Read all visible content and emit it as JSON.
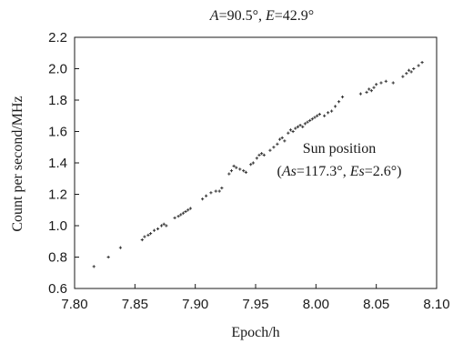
{
  "chart_data": {
    "type": "scatter",
    "title": "A=90.5°, E=42.9°",
    "title_parts": {
      "a_var": "A",
      "a_val": "=90.5°, ",
      "e_var": "E",
      "e_val": "=42.9°"
    },
    "xlabel": "Epoch/h",
    "ylabel": "Count per second/MHz",
    "xlim": [
      7.8,
      8.1
    ],
    "ylim": [
      0.6,
      2.2
    ],
    "xticks": [
      "7.80",
      "7.85",
      "7.90",
      "7.95",
      "8.00",
      "8.05",
      "8.10"
    ],
    "yticks": [
      "0.6",
      "0.8",
      "1.0",
      "1.2",
      "1.4",
      "1.6",
      "1.8",
      "2.0",
      "2.2"
    ],
    "grid": false,
    "legend": "none",
    "marker_color": "#333333",
    "annotation": {
      "line1": "Sun position",
      "open": "(",
      "as_var": "As",
      "as_val": "=117.3°, ",
      "es_var": "Es",
      "es_val": "=2.6°)"
    },
    "points": [
      [
        7.816,
        0.74
      ],
      [
        7.828,
        0.8
      ],
      [
        7.838,
        0.86
      ],
      [
        7.856,
        0.91
      ],
      [
        7.858,
        0.93
      ],
      [
        7.861,
        0.94
      ],
      [
        7.863,
        0.95
      ],
      [
        7.866,
        0.97
      ],
      [
        7.869,
        0.98
      ],
      [
        7.872,
        1.0
      ],
      [
        7.874,
        1.01
      ],
      [
        7.876,
        1.0
      ],
      [
        7.883,
        1.05
      ],
      [
        7.886,
        1.06
      ],
      [
        7.888,
        1.07
      ],
      [
        7.89,
        1.08
      ],
      [
        7.892,
        1.09
      ],
      [
        7.894,
        1.1
      ],
      [
        7.896,
        1.11
      ],
      [
        7.906,
        1.17
      ],
      [
        7.909,
        1.19
      ],
      [
        7.913,
        1.21
      ],
      [
        7.917,
        1.22
      ],
      [
        7.92,
        1.22
      ],
      [
        7.922,
        1.24
      ],
      [
        7.928,
        1.33
      ],
      [
        7.93,
        1.35
      ],
      [
        7.932,
        1.38
      ],
      [
        7.934,
        1.37
      ],
      [
        7.937,
        1.36
      ],
      [
        7.94,
        1.35
      ],
      [
        7.942,
        1.34
      ],
      [
        7.946,
        1.39
      ],
      [
        7.948,
        1.4
      ],
      [
        7.951,
        1.43
      ],
      [
        7.953,
        1.45
      ],
      [
        7.955,
        1.46
      ],
      [
        7.957,
        1.45
      ],
      [
        7.962,
        1.48
      ],
      [
        7.965,
        1.5
      ],
      [
        7.968,
        1.52
      ],
      [
        7.97,
        1.55
      ],
      [
        7.972,
        1.56
      ],
      [
        7.974,
        1.54
      ],
      [
        7.977,
        1.59
      ],
      [
        7.979,
        1.61
      ],
      [
        7.981,
        1.6
      ],
      [
        7.983,
        1.62
      ],
      [
        7.985,
        1.63
      ],
      [
        7.987,
        1.64
      ],
      [
        7.989,
        1.63
      ],
      [
        7.991,
        1.65
      ],
      [
        7.993,
        1.66
      ],
      [
        7.995,
        1.67
      ],
      [
        7.997,
        1.68
      ],
      [
        7.999,
        1.69
      ],
      [
        8.001,
        1.7
      ],
      [
        8.003,
        1.71
      ],
      [
        8.007,
        1.7
      ],
      [
        8.01,
        1.72
      ],
      [
        8.013,
        1.73
      ],
      [
        8.016,
        1.76
      ],
      [
        8.019,
        1.79
      ],
      [
        8.022,
        1.82
      ],
      [
        8.037,
        1.84
      ],
      [
        8.042,
        1.85
      ],
      [
        8.044,
        1.87
      ],
      [
        8.046,
        1.86
      ],
      [
        8.048,
        1.88
      ],
      [
        8.05,
        1.9
      ],
      [
        8.054,
        1.91
      ],
      [
        8.058,
        1.92
      ],
      [
        8.064,
        1.91
      ],
      [
        8.072,
        1.95
      ],
      [
        8.075,
        1.97
      ],
      [
        8.077,
        1.99
      ],
      [
        8.079,
        1.98
      ],
      [
        8.081,
        2.0
      ],
      [
        8.085,
        2.02
      ],
      [
        8.088,
        2.04
      ]
    ]
  }
}
